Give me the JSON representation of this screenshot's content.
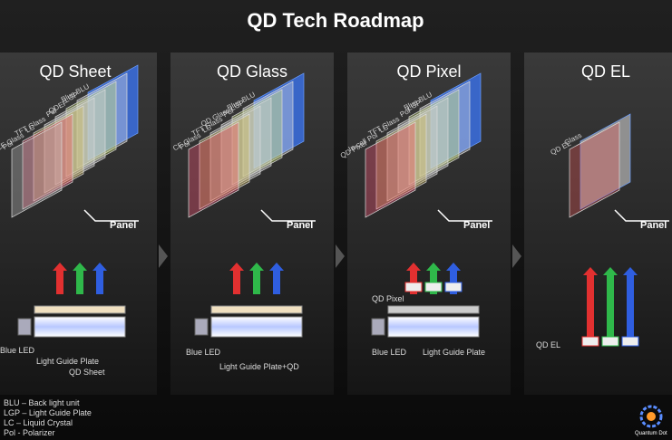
{
  "title": "QD Tech Roadmap",
  "panels": [
    {
      "name": "QD Sheet",
      "layers": [
        "Blue BLU",
        "LGP",
        "QDEF",
        "Pol",
        "TFT Glass",
        "LC",
        "CF Glass",
        "Pol"
      ],
      "panel_label": "Panel",
      "labels": [
        "Blue LED",
        "Light Guide Plate",
        "QD Sheet"
      ]
    },
    {
      "name": "QD Glass",
      "layers": [
        "Blue BLU",
        "QD Glass LGP",
        "Pol",
        "TFT Glass",
        "LC",
        "CF Glass",
        "Pol"
      ],
      "panel_label": "Panel",
      "labels": [
        "Blue LED",
        "Light Guide Plate+QD"
      ]
    },
    {
      "name": "QD Pixel",
      "layers": [
        "Blue BLU",
        "LGP",
        "Pol",
        "TFT Glass",
        "LC",
        "In-cell Pol",
        "QD Pixel"
      ],
      "panel_label": "Panel",
      "labels": [
        "QD Pixel",
        "Blue LED",
        "Light Guide Plate"
      ]
    },
    {
      "name": "QD EL",
      "layers": [
        "Glass",
        "QD EL"
      ],
      "panel_label": "Panel",
      "labels": [
        "QD EL"
      ]
    }
  ],
  "legend": [
    "BLU – Back light unit",
    "LGP – Light Guide Plate",
    "LC – Liquid Crystal",
    "Pol - Polarizer"
  ],
  "logo": "Quantum Dot"
}
